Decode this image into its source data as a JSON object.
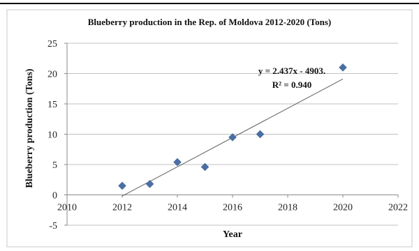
{
  "chart_data": {
    "type": "scatter",
    "title": "Blueberry production in the Rep. of Moldova 2012-2020 (Tons)",
    "xlabel": "Year",
    "ylabel": "Blueberry production (Tons)",
    "xlim": [
      2010,
      2022
    ],
    "ylim": [
      -5,
      25
    ],
    "xticks": [
      2010,
      2012,
      2014,
      2016,
      2018,
      2020,
      2022
    ],
    "yticks": [
      -5,
      0,
      5,
      10,
      15,
      20,
      25
    ],
    "grid": "horizontal",
    "marker_color": "#4a6fa5",
    "points": [
      {
        "x": 2012,
        "y": 1.5
      },
      {
        "x": 2013,
        "y": 1.8
      },
      {
        "x": 2014,
        "y": 5.4
      },
      {
        "x": 2015,
        "y": 4.6
      },
      {
        "x": 2016,
        "y": 9.5
      },
      {
        "x": 2017,
        "y": 10.0
      },
      {
        "x": 2020,
        "y": 21.0
      }
    ],
    "trendline": {
      "slope": 2.437,
      "x_start": 2012,
      "x_end": 2020,
      "y_start": -0.2,
      "y_end": 19.1,
      "equation": "y = 2.437x - 4903.",
      "r_squared": "R² = 0.940"
    }
  }
}
